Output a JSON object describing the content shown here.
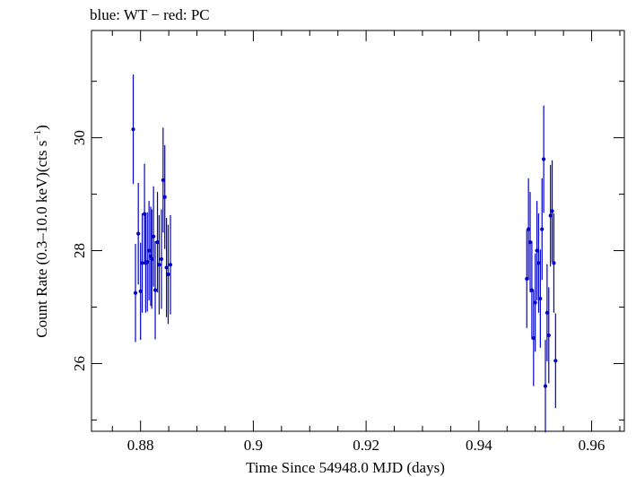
{
  "chart_data": {
    "type": "scatter",
    "title": "blue: WT − red: PC",
    "xlabel": "Time Since 54948.0 MJD (days)",
    "ylabel_main": "Count Rate (0.3–10.0 keV)(cts s",
    "ylabel_sup": "−1",
    "ylabel_close": ")",
    "xlim": [
      0.8713,
      0.9658
    ],
    "ylim": [
      24.8,
      31.9
    ],
    "xticks_major": [
      0.88,
      0.9,
      0.92,
      0.94,
      0.96
    ],
    "xtick_labels": [
      "0.88",
      "0.9",
      "0.92",
      "0.94",
      "0.96"
    ],
    "xticks_minor_step": 0.005,
    "yticks_major": [
      26,
      28,
      30
    ],
    "ytick_labels": [
      "26",
      "28",
      "30"
    ],
    "yticks_minor_step": 1,
    "grid": false,
    "series": [
      {
        "name": "WT",
        "color": "#0000cc",
        "points": [
          {
            "x": 0.8787,
            "y": 30.15,
            "err": 0.97
          },
          {
            "x": 0.8791,
            "y": 27.25,
            "err": 0.87
          },
          {
            "x": 0.8796,
            "y": 28.3,
            "err": 0.9
          },
          {
            "x": 0.88,
            "y": 27.28,
            "err": 0.86
          },
          {
            "x": 0.8803,
            "y": 27.78,
            "err": 0.88
          },
          {
            "x": 0.8807,
            "y": 28.65,
            "err": 0.89
          },
          {
            "x": 0.8809,
            "y": 27.78,
            "err": 0.88
          },
          {
            "x": 0.8812,
            "y": 27.8,
            "err": 0.88
          },
          {
            "x": 0.8815,
            "y": 28.0,
            "err": 0.88
          },
          {
            "x": 0.8818,
            "y": 27.9,
            "err": 0.88
          },
          {
            "x": 0.882,
            "y": 27.85,
            "err": 0.88
          },
          {
            "x": 0.8823,
            "y": 28.25,
            "err": 0.89
          },
          {
            "x": 0.8826,
            "y": 27.3,
            "err": 0.87
          },
          {
            "x": 0.883,
            "y": 28.15,
            "err": 0.89
          },
          {
            "x": 0.8833,
            "y": 27.75,
            "err": 0.88
          },
          {
            "x": 0.8837,
            "y": 27.85,
            "err": 0.88
          },
          {
            "x": 0.884,
            "y": 29.25,
            "err": 0.93
          },
          {
            "x": 0.8843,
            "y": 28.95,
            "err": 0.92
          },
          {
            "x": 0.8846,
            "y": 27.7,
            "err": 0.88
          },
          {
            "x": 0.8849,
            "y": 27.58,
            "err": 0.88
          },
          {
            "x": 0.8853,
            "y": 27.75,
            "err": 0.88
          }
        ]
      },
      {
        "name": "WT",
        "color": "#0000cc",
        "points": [
          {
            "x": 0.9485,
            "y": 27.5,
            "err": 0.87
          },
          {
            "x": 0.9488,
            "y": 28.38,
            "err": 0.9
          },
          {
            "x": 0.9491,
            "y": 28.15,
            "err": 0.89
          },
          {
            "x": 0.9494,
            "y": 27.3,
            "err": 0.87
          },
          {
            "x": 0.9497,
            "y": 26.45,
            "err": 0.85
          },
          {
            "x": 0.95,
            "y": 27.08,
            "err": 0.87
          },
          {
            "x": 0.9503,
            "y": 28.0,
            "err": 0.88
          },
          {
            "x": 0.9506,
            "y": 27.78,
            "err": 0.88
          },
          {
            "x": 0.9509,
            "y": 27.15,
            "err": 0.87
          },
          {
            "x": 0.9512,
            "y": 28.38,
            "err": 0.9
          },
          {
            "x": 0.9515,
            "y": 29.62,
            "err": 0.95
          },
          {
            "x": 0.9518,
            "y": 25.6,
            "err": 0.82
          },
          {
            "x": 0.9521,
            "y": 26.9,
            "err": 0.86
          },
          {
            "x": 0.9524,
            "y": 26.5,
            "err": 0.85
          },
          {
            "x": 0.9527,
            "y": 28.62,
            "err": 0.9
          },
          {
            "x": 0.953,
            "y": 28.7,
            "err": 0.9
          },
          {
            "x": 0.9533,
            "y": 27.78,
            "err": 0.88
          },
          {
            "x": 0.9536,
            "y": 26.05,
            "err": 0.84
          }
        ]
      }
    ]
  }
}
